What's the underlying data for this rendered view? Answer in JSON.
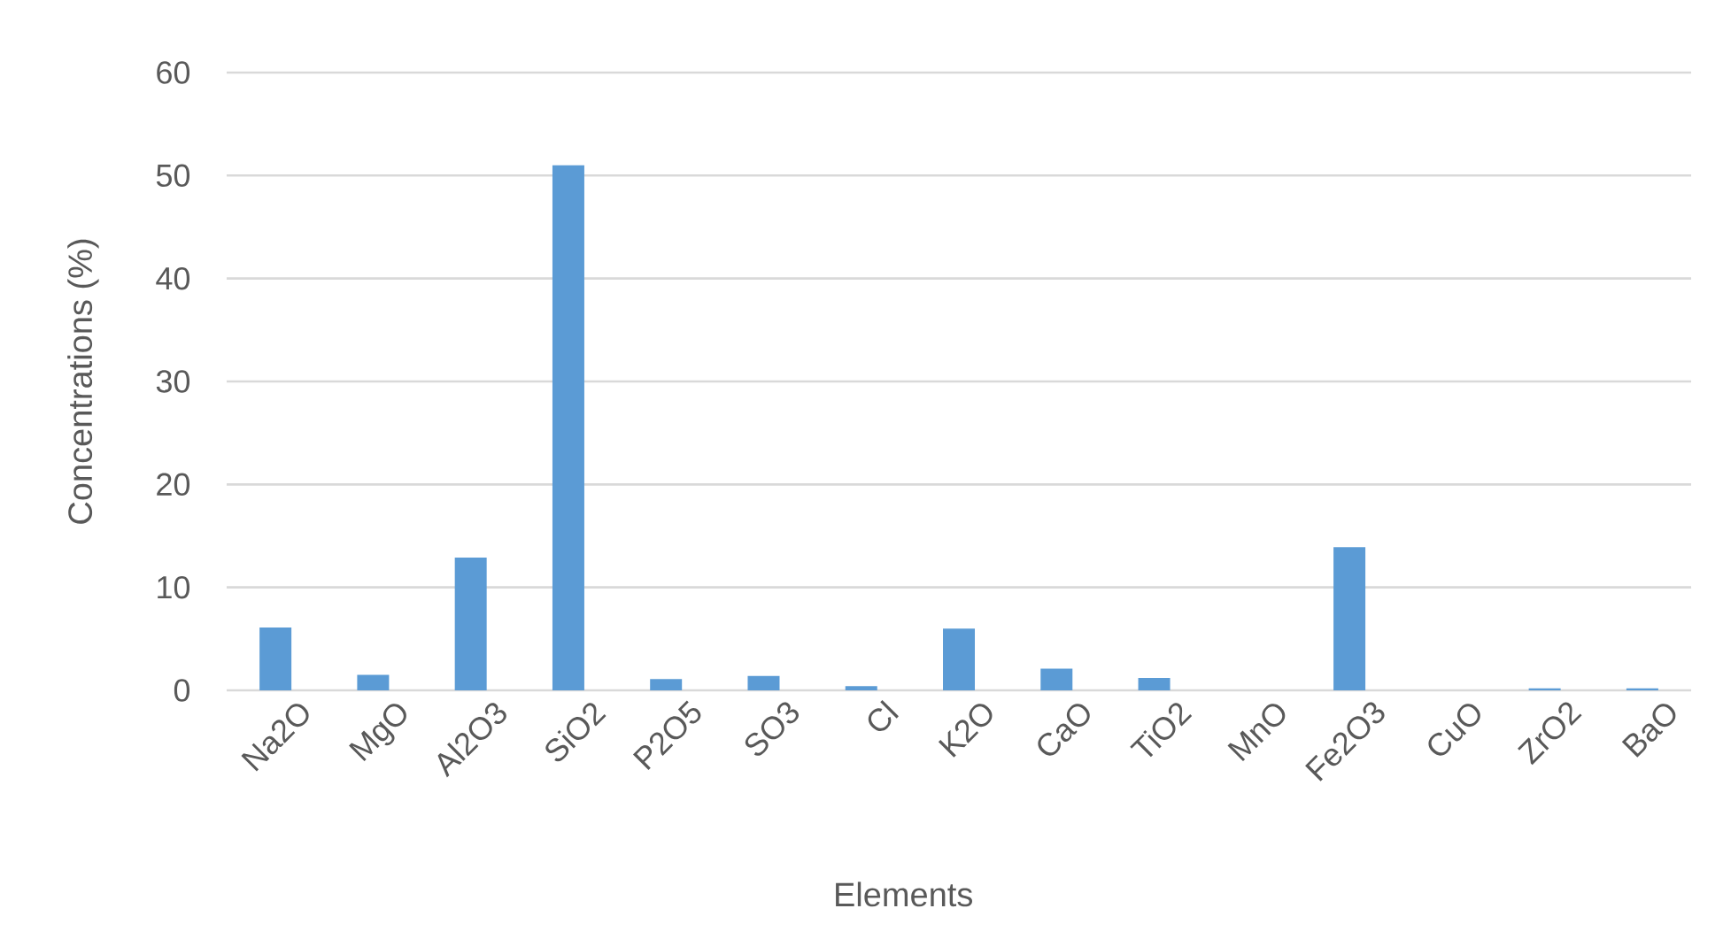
{
  "chart_data": {
    "type": "bar",
    "xlabel": "Elements",
    "ylabel": "Concentrations (%)",
    "categories": [
      "Na2O",
      "MgO",
      "Al2O3",
      "SiO2",
      "P2O5",
      "SO3",
      "Cl",
      "K2O",
      "CaO",
      "TiO2",
      "MnO",
      "Fe2O3",
      "CuO",
      "ZrO2",
      "BaO"
    ],
    "values": [
      6.1,
      1.5,
      12.9,
      51.0,
      1.1,
      1.4,
      0.4,
      6.0,
      2.1,
      1.2,
      0,
      13.9,
      0,
      0.2,
      0.2
    ],
    "color": "#5b9bd5",
    "ylim": [
      0,
      60
    ],
    "yticks": [
      0,
      10,
      20,
      30,
      40,
      50,
      60
    ],
    "grid": "y"
  }
}
